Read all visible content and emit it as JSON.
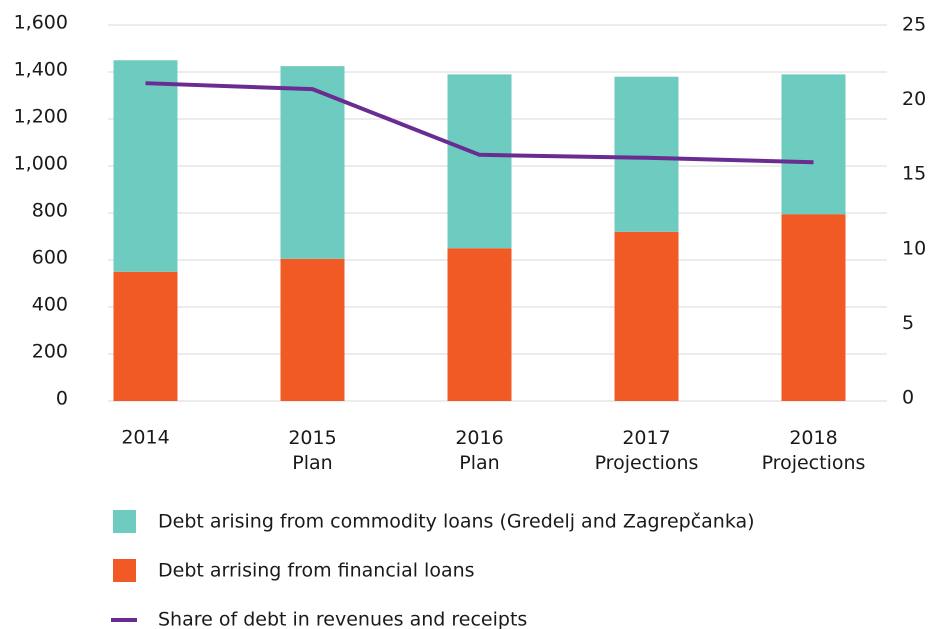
{
  "chart_data": {
    "type": "bar",
    "categories": [
      "2014",
      "2015\nPlan",
      "2016\nPlan",
      "2017\nProjections",
      "2018\nProjections"
    ],
    "series": [
      {
        "name": "Debt arrising from financial loans",
        "color": "#f15a24",
        "values": [
          550,
          605,
          650,
          720,
          795
        ]
      },
      {
        "name": "Debt arising from commodity loans (Gredelj and Zagrepčanka)",
        "color": "#6ecbbf",
        "values": [
          900,
          820,
          740,
          660,
          595
        ]
      },
      {
        "name": "Share of debt in revenues and receipts",
        "color": "#6a2c91",
        "type": "line",
        "axis": "y2",
        "values": [
          21.1,
          20.7,
          16.3,
          16.1,
          15.8
        ]
      }
    ],
    "stacked": true,
    "ylim": [
      0,
      1600
    ],
    "yticks": [
      0,
      200,
      400,
      600,
      800,
      {
        "value": 1000,
        "label": "1,000"
      },
      {
        "value": 1200,
        "label": "1,200"
      },
      {
        "value": 1400,
        "label": "1,400"
      },
      {
        "value": 1600,
        "label": "1,600"
      }
    ],
    "y2lim": [
      0,
      25
    ],
    "y2ticks": [
      0,
      5,
      10,
      15,
      20,
      25
    ],
    "grid": true,
    "legend": "bottom"
  }
}
